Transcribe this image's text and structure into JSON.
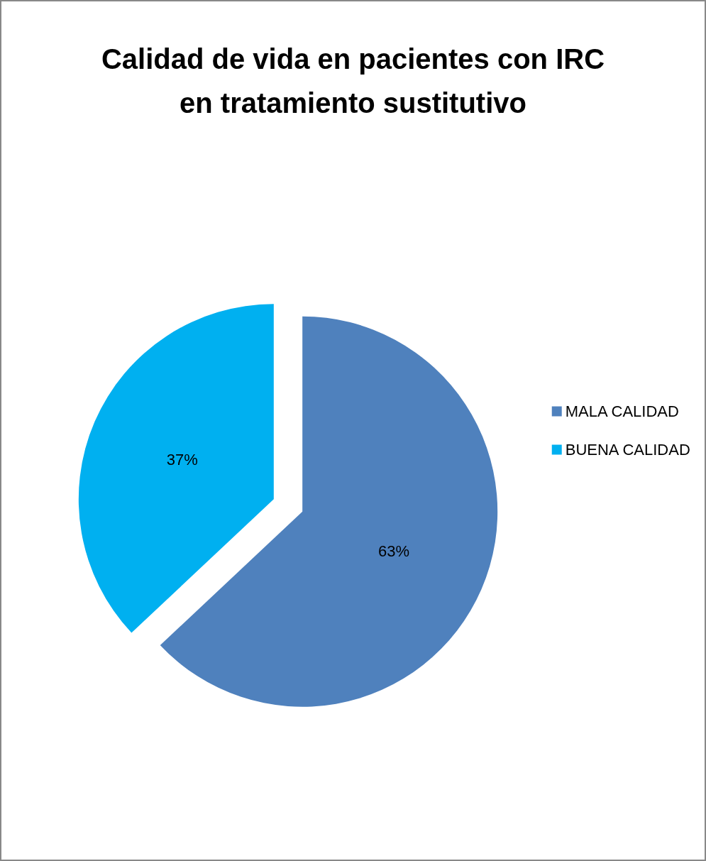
{
  "chart_data": {
    "type": "pie",
    "title": "Calidad de vida en pacientes con IRC\nen tratamiento sustitutivo",
    "categories": [
      "MALA CALIDAD",
      "BUENA CALIDAD"
    ],
    "values": [
      63,
      37
    ],
    "value_labels": [
      "63%",
      "37%"
    ],
    "colors": [
      "#4f81bd",
      "#00b0f0"
    ],
    "legend": "right"
  }
}
